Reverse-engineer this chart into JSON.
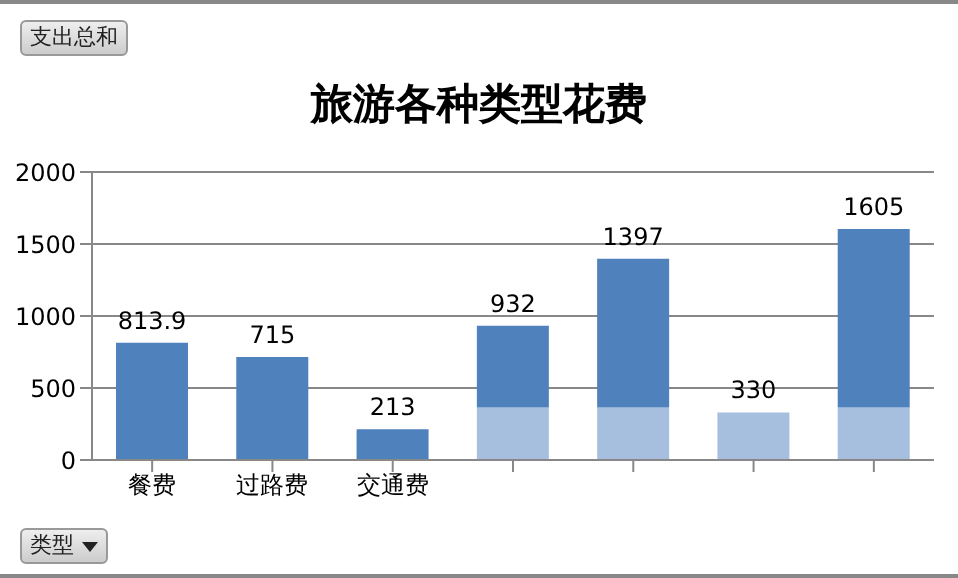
{
  "chart_data": {
    "type": "bar",
    "title": "旅游各种类型花费",
    "categories": [
      "餐费",
      "过路费",
      "交通费",
      null,
      null,
      null,
      null
    ],
    "series": [
      {
        "color": "#a7bfde",
        "values": [
          null,
          null,
          null,
          365,
          365,
          330,
          365
        ]
      },
      {
        "color": "#4f81bd",
        "values": [
          813.9,
          715,
          213,
          567,
          1032,
          null,
          1240
        ]
      }
    ],
    "stacked": true,
    "totals": [
      "813.9",
      "715",
      "213",
      "932",
      "1397",
      "330",
      "1605"
    ],
    "ylim": [
      0,
      2000
    ],
    "yticks": [
      0,
      500,
      1000,
      1500,
      2000
    ],
    "grid": "y",
    "legend": false,
    "annotations": [
      "支出总和",
      "类型"
    ]
  }
}
